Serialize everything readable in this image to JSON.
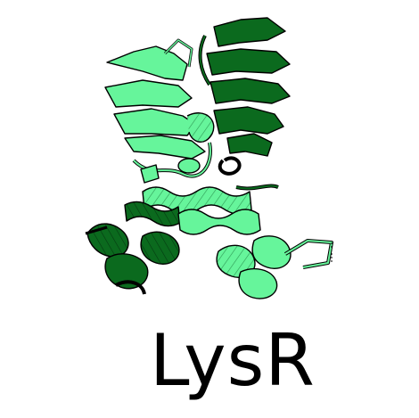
{
  "caption": "LysR",
  "colors": {
    "light_chain": "#66f59b",
    "dark_chain": "#0b6a1e",
    "outline": "#000000",
    "background": "#ffffff"
  }
}
